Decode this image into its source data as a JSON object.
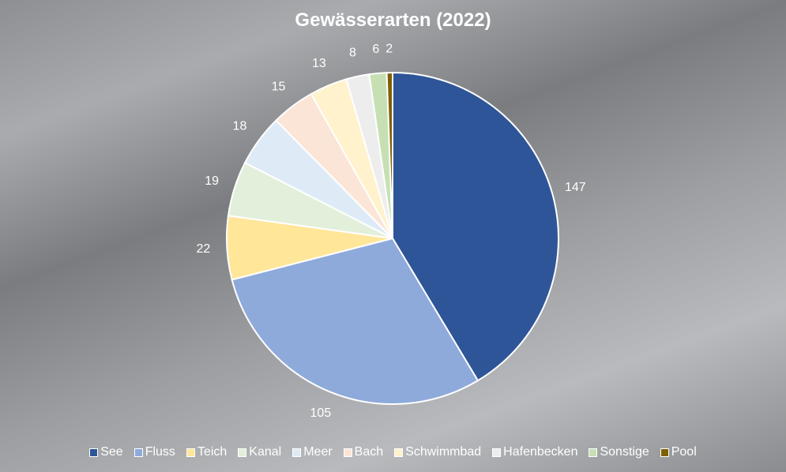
{
  "chart_data": {
    "type": "pie",
    "title": "Gewässerarten (2022)",
    "categories": [
      "See",
      "Fluss",
      "Teich",
      "Kanal",
      "Meer",
      "Bach",
      "Schwimmbad",
      "Hafenbecken",
      "Sonstige",
      "Pool"
    ],
    "values": [
      147,
      105,
      22,
      19,
      18,
      15,
      13,
      8,
      6,
      2
    ],
    "colors": [
      "#2e5597",
      "#8eaadb",
      "#ffe699",
      "#e2efda",
      "#deebf7",
      "#fbe5d6",
      "#fff2cc",
      "#ededed",
      "#c6e0b4",
      "#7f6000"
    ],
    "legend_position": "bottom",
    "data_labels": true
  }
}
